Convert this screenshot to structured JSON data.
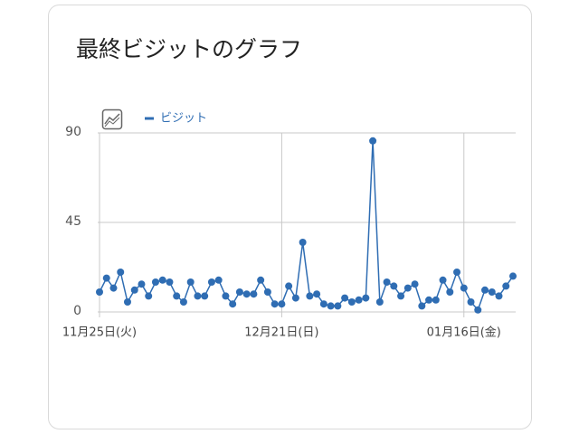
{
  "chart_data": {
    "type": "line",
    "title": "最終ビジットのグラフ",
    "categories": [
      "11月25日(火)",
      null,
      null,
      null,
      null,
      null,
      null,
      null,
      null,
      null,
      null,
      null,
      null,
      null,
      null,
      null,
      null,
      null,
      null,
      null,
      null,
      null,
      null,
      null,
      null,
      null,
      "12月21日(日)",
      null,
      null,
      null,
      null,
      null,
      null,
      null,
      null,
      null,
      null,
      null,
      null,
      null,
      null,
      null,
      null,
      null,
      null,
      null,
      null,
      null,
      null,
      null,
      null,
      null,
      "01月16日(金)",
      null,
      null,
      null,
      null,
      null,
      null,
      null
    ],
    "series": [
      {
        "name": "ビジット",
        "color": "#2f6db3",
        "values": [
          10,
          17,
          12,
          20,
          5,
          11,
          14,
          8,
          15,
          16,
          15,
          8,
          5,
          15,
          8,
          8,
          15,
          16,
          8,
          4,
          10,
          9,
          9,
          16,
          10,
          4,
          4,
          13,
          7,
          35,
          8,
          9,
          4,
          3,
          3,
          7,
          5,
          6,
          7,
          86,
          5,
          15,
          13,
          8,
          12,
          14,
          3,
          6,
          6,
          16,
          10,
          20,
          12,
          5,
          1,
          11,
          10,
          8,
          13,
          18
        ]
      }
    ],
    "ylim": [
      0,
      90
    ],
    "yticks": [
      0,
      45,
      90
    ],
    "grid": true
  }
}
